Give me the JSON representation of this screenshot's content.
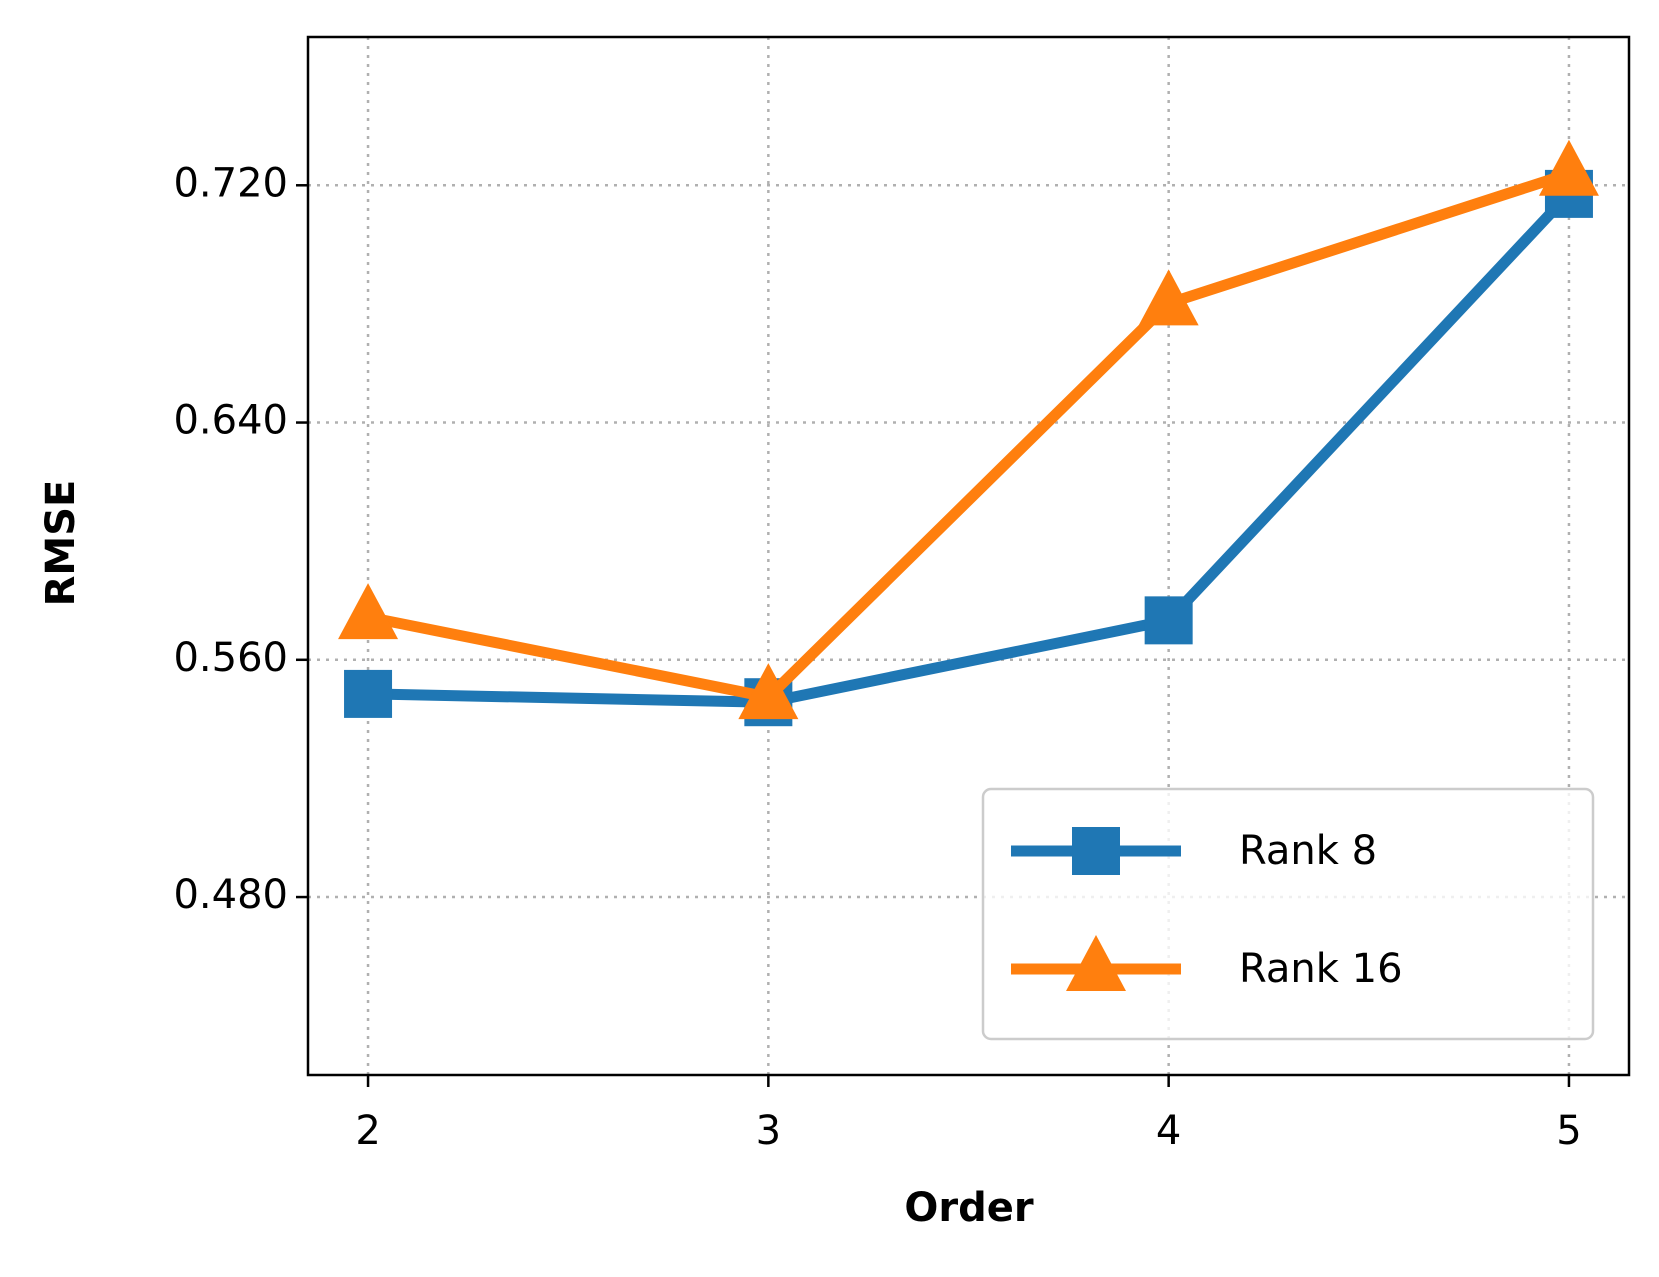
{
  "chart_data": {
    "type": "line",
    "x_label": "Order",
    "y_label": "RMSE",
    "x": [
      2,
      3,
      4,
      5
    ],
    "series": [
      {
        "name": "Rank 8",
        "color": "#1f77b4",
        "marker": "square",
        "values": [
          0.5485,
          0.5457,
          0.5733,
          0.7171
        ]
      },
      {
        "name": "Rank 16",
        "color": "#ff7f0e",
        "marker": "triangle",
        "values": [
          0.5744,
          0.5474,
          0.6802,
          0.7239
        ]
      }
    ],
    "xlim": [
      1.85,
      5.15
    ],
    "ylim": [
      0.42,
      0.77
    ],
    "xticks": [
      2,
      3,
      4,
      5
    ],
    "yticks": [
      {
        "value": 0.48,
        "label": "0.480"
      },
      {
        "value": 0.56,
        "label": "0.560"
      },
      {
        "value": 0.64,
        "label": "0.640"
      },
      {
        "value": 0.72,
        "label": "0.720"
      }
    ],
    "grid": true,
    "legend": "lower right"
  }
}
